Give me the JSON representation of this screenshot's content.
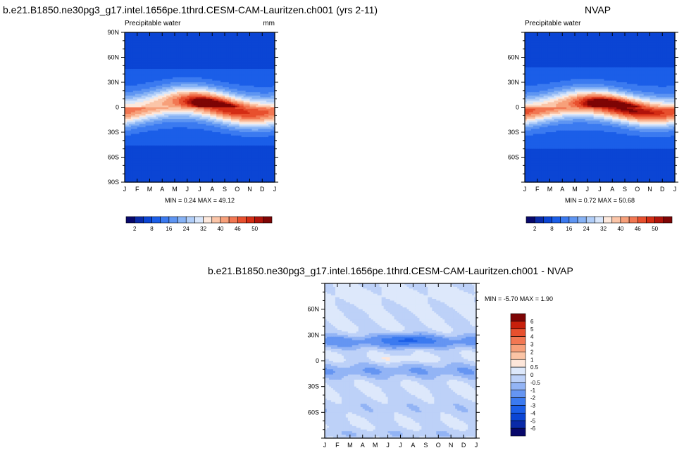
{
  "titles": {
    "model": "b.e21.B1850.ne30pg3_g17.intel.1656pe.1thrd.CESM-CAM-Lauritzen.ch001 (yrs 2-11)",
    "obs": "NVAP",
    "diff": "b.e21.B1850.ne30pg3_g17.intel.1656pe.1thrd.CESM-CAM-Lauritzen.ch001 - NVAP"
  },
  "colors": {
    "full_palette": [
      "#08086b",
      "#0a2aa8",
      "#0b45d4",
      "#1b5ee8",
      "#3b7af0",
      "#5e95f2",
      "#86b2f5",
      "#b0cdf8",
      "#d8e6fb",
      "#fde8dc",
      "#fbc5a8",
      "#f7a07a",
      "#f27752",
      "#e8502e",
      "#d42d14",
      "#b0130a",
      "#7e0505"
    ],
    "diff_palette": [
      "#08086b",
      "#0a2aa8",
      "#0b45d4",
      "#1b5ee8",
      "#3b7af0",
      "#6595f2",
      "#93b4f5",
      "#bdd1f8",
      "#dde8fb",
      "#fde6da",
      "#fbc4a5",
      "#f7a07a",
      "#f27752",
      "#e8502e",
      "#c8200c",
      "#7e0505"
    ]
  },
  "chart_data": [
    {
      "type": "heatmap",
      "panel": "model",
      "label_left": "Precipitable water",
      "label_right": "mm",
      "x_ticks": [
        "J",
        "F",
        "M",
        "A",
        "M",
        "J",
        "J",
        "A",
        "S",
        "O",
        "N",
        "D",
        "J"
      ],
      "y_ticks": [
        {
          "lat": 90,
          "label": "90N"
        },
        {
          "lat": 60,
          "label": "60N"
        },
        {
          "lat": 30,
          "label": "30N"
        },
        {
          "lat": 0,
          "label": "0"
        },
        {
          "lat": -30,
          "label": "30S"
        },
        {
          "lat": -60,
          "label": "60S"
        },
        {
          "lat": -90,
          "label": "90S"
        }
      ],
      "ylim": [
        -90,
        90
      ],
      "stats": "MIN =   0.24 MAX =  49.12",
      "min": 0.24,
      "max": 49.12,
      "levels": [
        0,
        2,
        5,
        8,
        12,
        16,
        20,
        24,
        28,
        32,
        36,
        40,
        43,
        46,
        48,
        50
      ],
      "colorbar_labels": [
        "2",
        "8",
        "16",
        "24",
        "32",
        "40",
        "46",
        "50"
      ],
      "colorbar_label_levels": [
        2,
        8,
        16,
        24,
        32,
        40,
        46,
        50
      ]
    },
    {
      "type": "heatmap",
      "panel": "obs",
      "label_left": "Precipitable water",
      "label_right": "",
      "x_ticks": [
        "J",
        "F",
        "M",
        "A",
        "M",
        "J",
        "J",
        "A",
        "S",
        "O",
        "N",
        "D",
        "J"
      ],
      "y_ticks": [
        {
          "lat": 60,
          "label": "60N"
        },
        {
          "lat": 30,
          "label": "30N"
        },
        {
          "lat": 0,
          "label": "0"
        },
        {
          "lat": -30,
          "label": "30S"
        },
        {
          "lat": -60,
          "label": "60S"
        }
      ],
      "ylim": [
        -90,
        90
      ],
      "stats": "MIN =   0.72 MAX =  50.68",
      "min": 0.72,
      "max": 50.68,
      "levels": [
        0,
        2,
        5,
        8,
        12,
        16,
        20,
        24,
        28,
        32,
        36,
        40,
        43,
        46,
        48,
        50
      ],
      "colorbar_labels": [
        "2",
        "8",
        "16",
        "24",
        "32",
        "40",
        "46",
        "50"
      ],
      "colorbar_label_levels": [
        2,
        8,
        16,
        24,
        32,
        40,
        46,
        50
      ]
    },
    {
      "type": "heatmap",
      "panel": "diff",
      "x_ticks": [
        "J",
        "F",
        "M",
        "A",
        "M",
        "J",
        "J",
        "A",
        "S",
        "O",
        "N",
        "D",
        "J"
      ],
      "y_ticks": [
        {
          "lat": 60,
          "label": "60N"
        },
        {
          "lat": 30,
          "label": "30N"
        },
        {
          "lat": 0,
          "label": "0"
        },
        {
          "lat": -30,
          "label": "30S"
        },
        {
          "lat": -60,
          "label": "60S"
        }
      ],
      "ylim": [
        -90,
        90
      ],
      "stats": "MIN =  -5.70 MAX =   1.90",
      "min": -5.7,
      "max": 1.9,
      "levels": [
        -6,
        -5,
        -4,
        -3,
        -2,
        -1,
        -0.5,
        0,
        0.5,
        1,
        2,
        3,
        4,
        5,
        6
      ],
      "colorbar_labels": [
        "6",
        "5",
        "4",
        "3",
        "2",
        "1",
        "0.5",
        "0",
        "-0.5",
        "-1",
        "-2",
        "-3",
        "-4",
        "-5",
        "-6"
      ]
    }
  ]
}
